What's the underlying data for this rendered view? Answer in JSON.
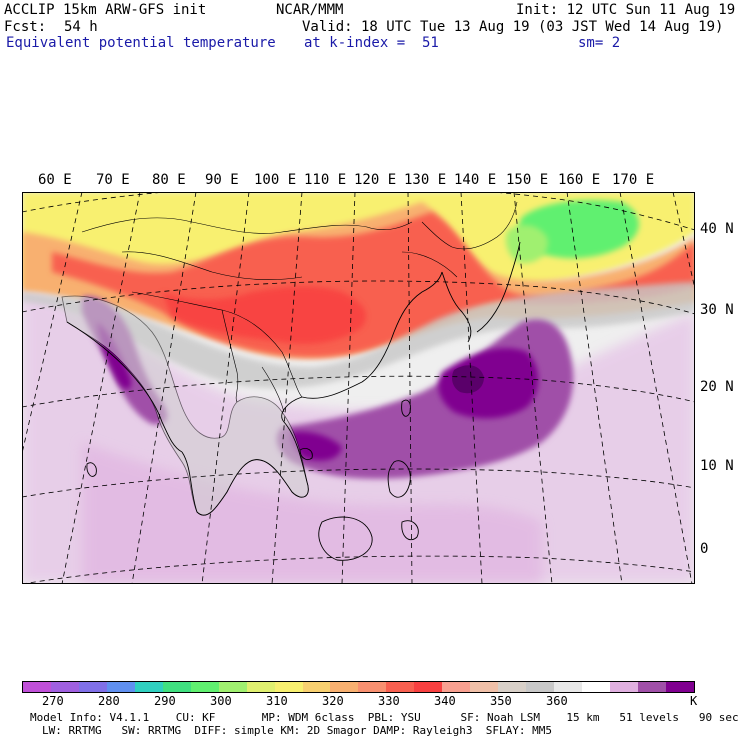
{
  "header": {
    "line1_left": "ACCLIP 15km ARW-GFS init",
    "line1_center": "NCAR/MMM",
    "line1_right": "Init: 12 UTC Sun 11 Aug 19",
    "fcst_label": "Fcst:",
    "fcst_value": "54 h",
    "valid": "Valid: 18 UTC Tue 13 Aug 19 (03 JST Wed 14 Aug 19)",
    "field": "Equivalent potential temperature",
    "level": "at k-index =  51",
    "smooth": "sm= 2"
  },
  "map": {
    "lon_labels": [
      "60 E",
      "70 E",
      "80 E",
      "90 E",
      "100 E",
      "110 E",
      "120 E",
      "130 E",
      "140 E",
      "150 E",
      "160 E",
      "170 E"
    ],
    "lat_labels": [
      "40 N",
      "30 N",
      "20 N",
      "10 N",
      "0"
    ]
  },
  "colorbar": {
    "unit": "K",
    "labels": [
      "270",
      "280",
      "290",
      "300",
      "310",
      "320",
      "330",
      "340",
      "350",
      "360"
    ],
    "colors": [
      "#c050d8",
      "#a060e0",
      "#8070e8",
      "#6090f0",
      "#30d0c0",
      "#40e080",
      "#60f070",
      "#a0f070",
      "#e0f070",
      "#f8f070",
      "#f8d070",
      "#f8b070",
      "#f89070",
      "#f86050",
      "#f84040",
      "#f8a090",
      "#f0c0a8",
      "#d8d0c8",
      "#c8c8c8",
      "#e8e8e8",
      "#ffffff",
      "#e0b0e0",
      "#a050a8",
      "#800090"
    ]
  },
  "footer": {
    "line1": "Model Info: V4.1.1    CU: KF       MP: WDM 6class  PBL: YSU      SF: Noah LSM    15 km   51 levels   90 sec",
    "line2": "LW: RRTMG   SW: RRTMG  DIFF: simple KM: 2D Smagor DAMP: Rayleigh3  SFLAY: MM5"
  }
}
